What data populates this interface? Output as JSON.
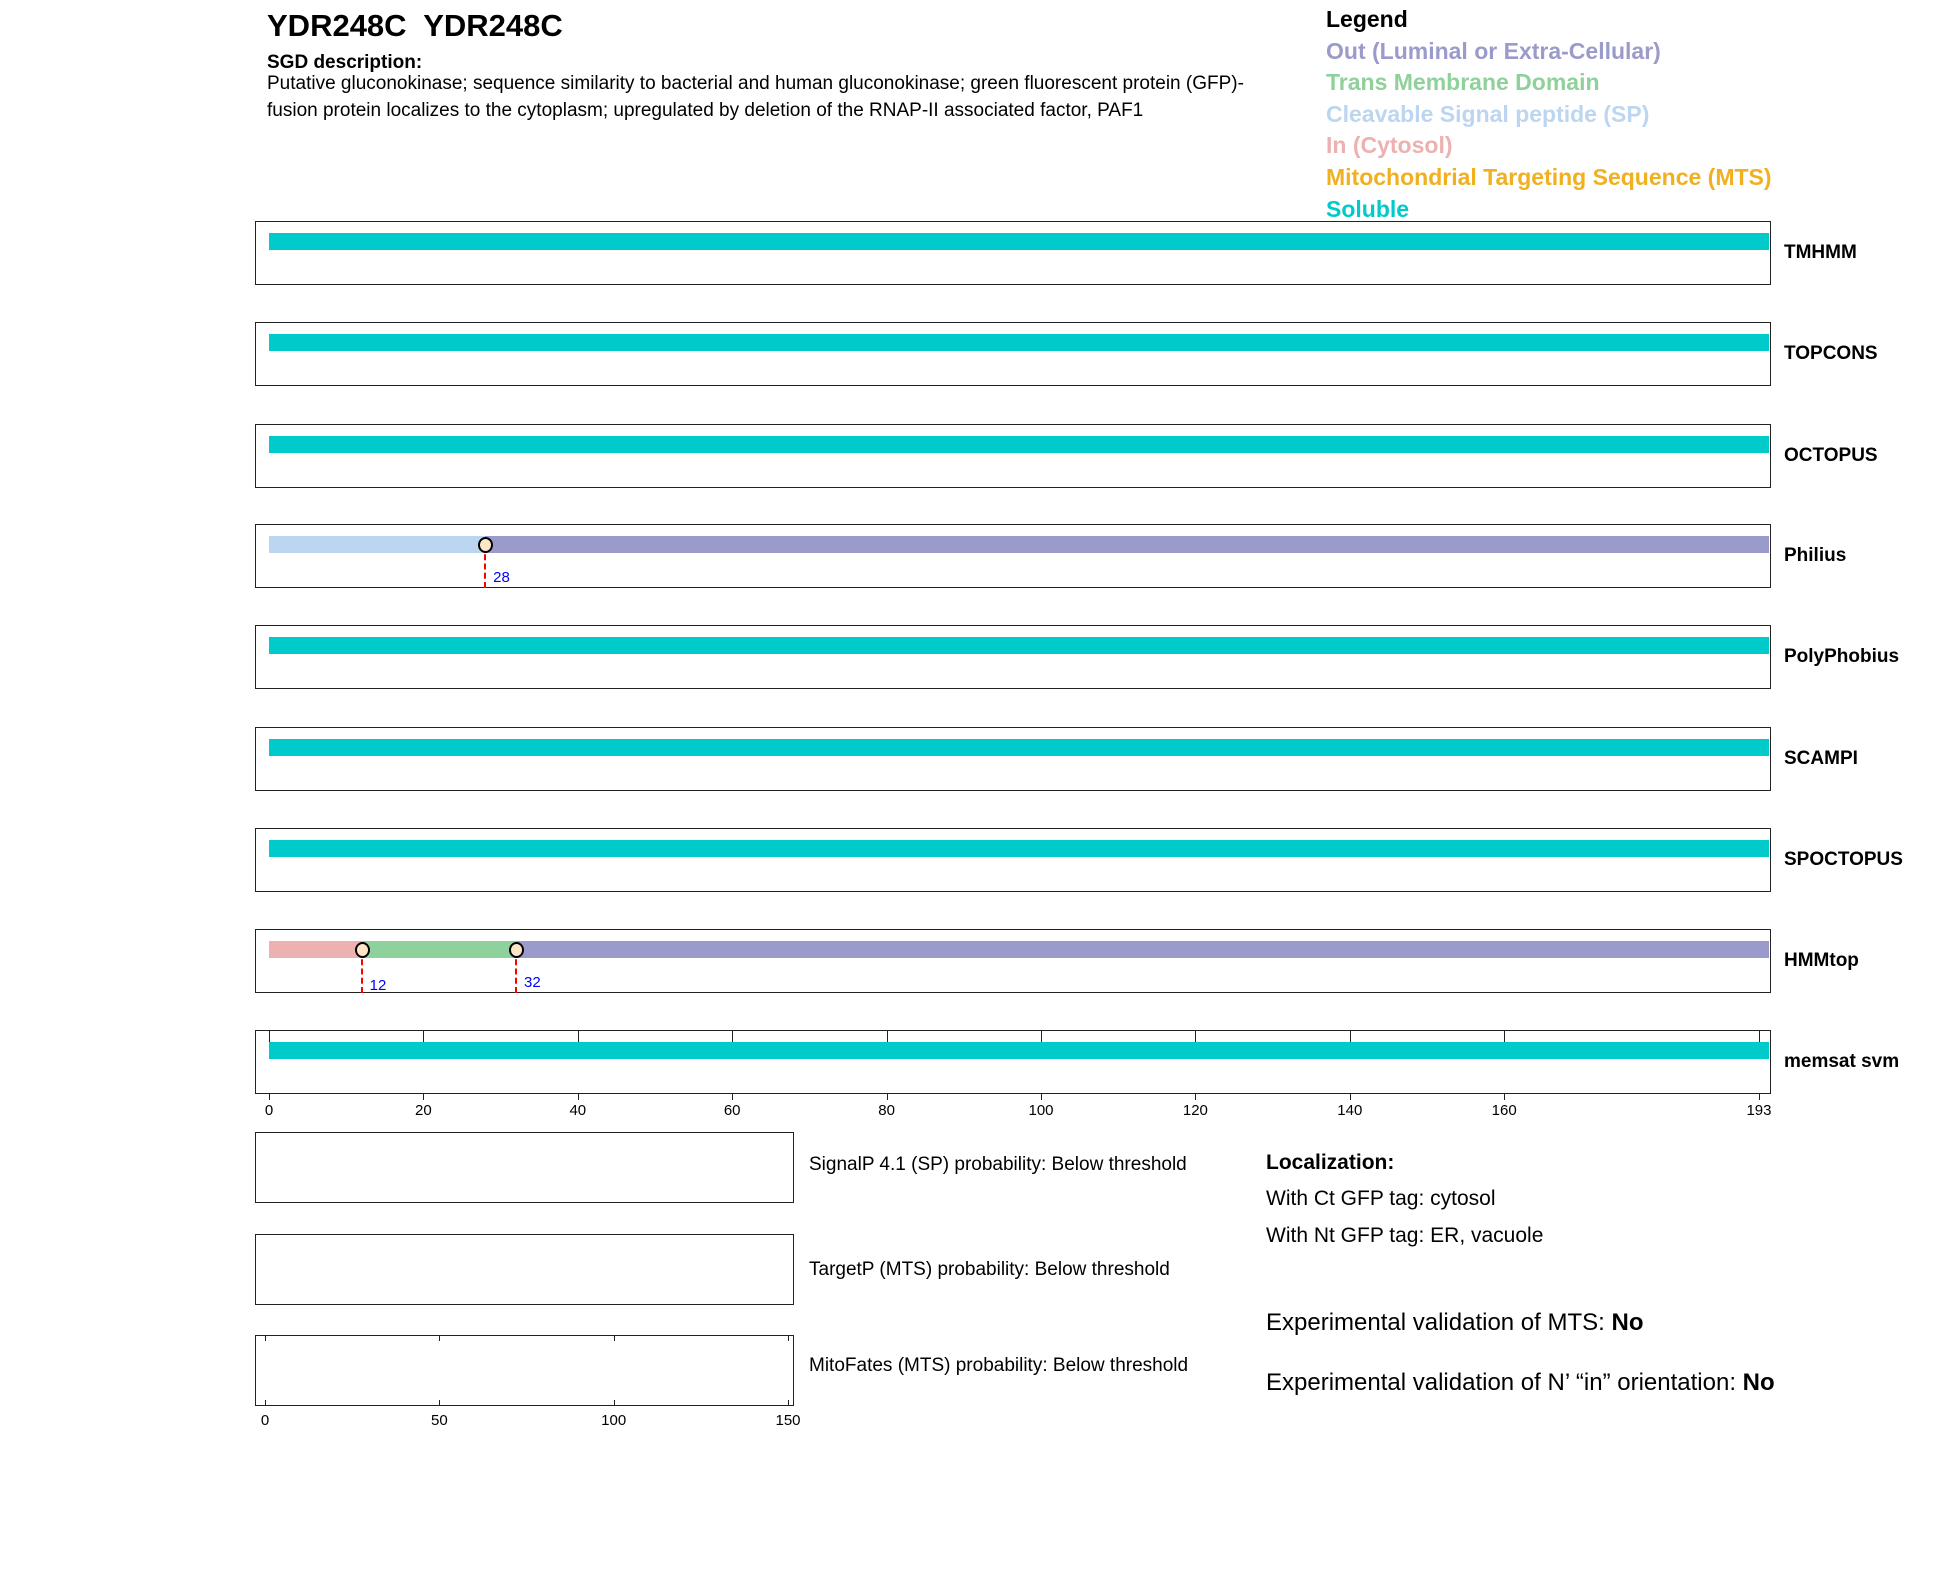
{
  "header": {
    "title": "YDR248C  YDR248C",
    "sgd_label": "SGD description:",
    "sgd_text": "Putative gluconokinase; sequence similarity to bacterial and human gluconokinase; green fluorescent protein (GFP)-fusion protein localizes to the cytoplasm; upregulated by deletion of the RNAP-II associated factor, PAF1"
  },
  "legend": {
    "title": "Legend",
    "items": [
      {
        "label": "Out (Luminal or Extra-Cellular)",
        "color": "#9b9bcb",
        "key": "out"
      },
      {
        "label": "Trans Membrane Domain",
        "color": "#8fd19a",
        "key": "tm"
      },
      {
        "label": "Cleavable Signal peptide (SP)",
        "color": "#bcd6f2",
        "key": "sp"
      },
      {
        "label": "In (Cytosol)",
        "color": "#edb1b1",
        "key": "in"
      },
      {
        "label": "Mitochondrial Targeting Sequence (MTS)",
        "color": "#f0b020",
        "key": "mts"
      },
      {
        "label": "Soluble",
        "color": "#00cbca",
        "key": "soluble"
      }
    ]
  },
  "chart_data": {
    "type": "track",
    "sequence_length": 193,
    "xlim": [
      0,
      193
    ],
    "x_ticks": [
      "0",
      "20",
      "40",
      "60",
      "80",
      "100",
      "120",
      "140",
      "160",
      "193"
    ],
    "tracks": [
      {
        "name": "TMHMM",
        "segments": [
          {
            "start": 0,
            "end": 193,
            "type": "soluble"
          }
        ],
        "markers": []
      },
      {
        "name": "TOPCONS",
        "segments": [
          {
            "start": 0,
            "end": 193,
            "type": "soluble"
          }
        ],
        "markers": []
      },
      {
        "name": "OCTOPUS",
        "segments": [
          {
            "start": 0,
            "end": 193,
            "type": "soluble"
          }
        ],
        "markers": []
      },
      {
        "name": "Philius",
        "segments": [
          {
            "start": 0,
            "end": 28,
            "type": "sp"
          },
          {
            "start": 28,
            "end": 193,
            "type": "out"
          }
        ],
        "markers": [
          {
            "pos": 28,
            "label": "28"
          }
        ]
      },
      {
        "name": "PolyPhobius",
        "segments": [
          {
            "start": 0,
            "end": 193,
            "type": "soluble"
          }
        ],
        "markers": []
      },
      {
        "name": "SCAMPI",
        "segments": [
          {
            "start": 0,
            "end": 193,
            "type": "soluble"
          }
        ],
        "markers": []
      },
      {
        "name": "SPOCTOPUS",
        "segments": [
          {
            "start": 0,
            "end": 193,
            "type": "soluble"
          }
        ],
        "markers": []
      },
      {
        "name": "HMMtop",
        "segments": [
          {
            "start": 0,
            "end": 12,
            "type": "in"
          },
          {
            "start": 12,
            "end": 32,
            "type": "tm"
          },
          {
            "start": 32,
            "end": 193,
            "type": "out"
          }
        ],
        "markers": [
          {
            "pos": 12,
            "label": "12"
          },
          {
            "pos": 32,
            "label": "32"
          }
        ]
      },
      {
        "name": "memsat svm",
        "segments": [
          {
            "start": 0,
            "end": 193,
            "type": "soluble"
          }
        ],
        "markers": []
      }
    ],
    "probability_axis": {
      "xlim": [
        0,
        150
      ],
      "ticks": [
        "0",
        "50",
        "100",
        "150"
      ]
    }
  },
  "predictions": {
    "signalp": "SignalP 4.1 (SP) probability: Below threshold",
    "targetp": "TargetP (MTS) probability: Below threshold",
    "mitofates": "MitoFates (MTS) probability: Below threshold"
  },
  "localization": {
    "title": "Localization:",
    "ct": "With Ct GFP tag: cytosol",
    "nt": "With Nt GFP tag: ER, vacuole"
  },
  "validation": {
    "mts_label": "Experimental validation of MTS: ",
    "mts_value": "No",
    "nin_label": "Experimental validation of N’ “in” orientation: ",
    "nin_value": "No"
  }
}
